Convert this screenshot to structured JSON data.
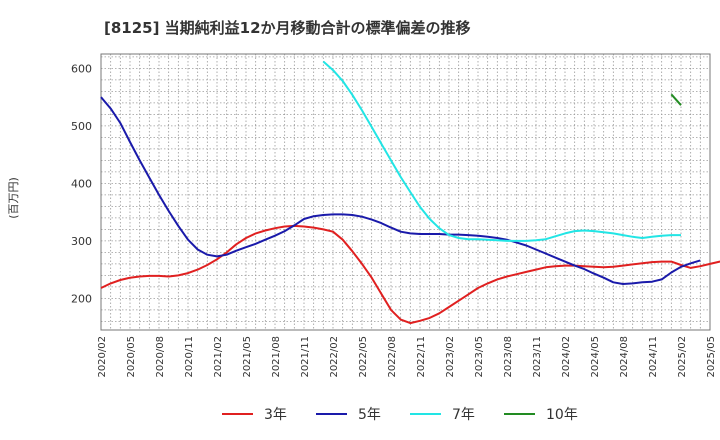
{
  "chart_data": {
    "type": "line",
    "title": "[8125]  当期純利益12か月移動合計の標準偏差の推移",
    "ylabel": "(百万円)",
    "xlabel": "",
    "ylim": [
      145,
      625
    ],
    "yticks": [
      200,
      300,
      400,
      500,
      600
    ],
    "grid": true,
    "legend_position": "bottom",
    "x_ticks": [
      "2020/02",
      "2020/05",
      "2020/08",
      "2020/11",
      "2021/02",
      "2021/05",
      "2021/08",
      "2021/11",
      "2022/02",
      "2022/05",
      "2022/08",
      "2022/11",
      "2023/02",
      "2023/05",
      "2023/08",
      "2023/11",
      "2024/02",
      "2024/05",
      "2024/08",
      "2024/11",
      "2025/02",
      "2025/05"
    ],
    "series": [
      {
        "name": "3年",
        "color": "#e02020",
        "start": "2020/02",
        "values": [
          218,
          226,
          232,
          236,
          238,
          239,
          239,
          238,
          240,
          244,
          250,
          258,
          268,
          280,
          294,
          305,
          313,
          318,
          322,
          325,
          326,
          325,
          323,
          320,
          316,
          302,
          282,
          260,
          236,
          208,
          180,
          163,
          157,
          161,
          166,
          174,
          185,
          196,
          207,
          218,
          226,
          233,
          238,
          242,
          246,
          250,
          254,
          256,
          257,
          257,
          256,
          255,
          254,
          255,
          257,
          259,
          261,
          263,
          264,
          264,
          258,
          253,
          256,
          260,
          264,
          268
        ]
      },
      {
        "name": "5年",
        "color": "#1a1aaa",
        "start": "2020/02",
        "values": [
          550,
          530,
          505,
          472,
          440,
          410,
          380,
          352,
          326,
          302,
          285,
          276,
          273,
          276,
          283,
          289,
          295,
          302,
          309,
          317,
          327,
          338,
          343,
          345,
          346,
          346,
          345,
          342,
          337,
          331,
          323,
          316,
          313,
          312,
          312,
          312,
          311,
          311,
          310,
          309,
          307,
          305,
          302,
          297,
          292,
          285,
          278,
          271,
          264,
          257,
          251,
          243,
          236,
          228,
          225,
          226,
          228,
          229,
          233,
          245,
          255,
          261,
          266
        ]
      },
      {
        "name": "7年",
        "color": "#22e5e5",
        "start": "2022/01",
        "values": [
          612,
          597,
          578,
          554,
          527,
          498,
          469,
          440,
          411,
          385,
          359,
          338,
          322,
          310,
          305,
          303,
          303,
          302,
          301,
          300,
          300,
          300,
          301,
          303,
          308,
          313,
          317,
          318,
          317,
          315,
          313,
          310,
          307,
          305,
          307,
          309,
          310,
          310
        ]
      },
      {
        "name": "10年",
        "color": "#228b22",
        "start": "2025/01",
        "values": [
          555,
          536
        ]
      }
    ]
  }
}
